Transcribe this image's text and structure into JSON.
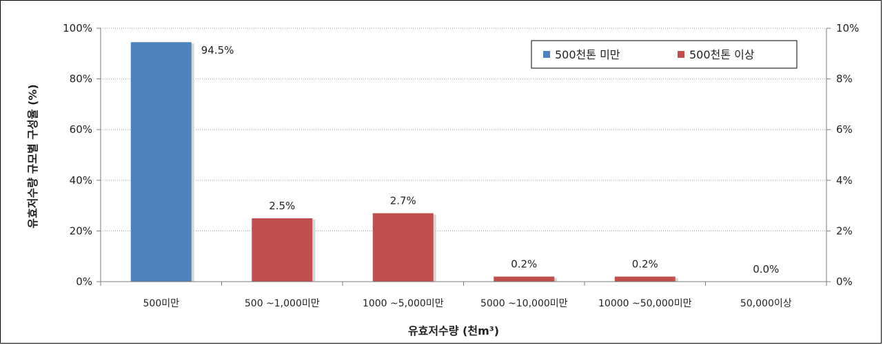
{
  "chart_data": {
    "type": "bar",
    "categories": [
      "500미만",
      "500 ~1,000미만",
      "1000 ~5,000미만",
      "5000 ~10,000미만",
      "10000 ~50,000미만",
      "50,000이상"
    ],
    "series": [
      {
        "name": "500천톤 미만",
        "color": "#4F81BD",
        "axis": "left",
        "values": [
          94.5,
          null,
          null,
          null,
          null,
          null
        ]
      },
      {
        "name": "500천톤 이상",
        "color": "#C0504D",
        "axis": "right",
        "values": [
          null,
          2.5,
          2.7,
          0.2,
          0.2,
          0.0
        ]
      }
    ],
    "data_labels": [
      "94.5%",
      "2.5%",
      "2.7%",
      "0.2%",
      "0.2%",
      "0.0%"
    ],
    "xlabel": "유효저수량 (천m³)",
    "ylabel": "유효저수량 규모별 구성율 (%)",
    "ylim_left": [
      0,
      100
    ],
    "ylim_right": [
      0,
      10
    ],
    "yticks_left": [
      "0%",
      "20%",
      "40%",
      "60%",
      "80%",
      "100%"
    ],
    "yticks_right": [
      "0%",
      "2%",
      "4%",
      "6%",
      "8%",
      "10%"
    ],
    "grid": true,
    "legend_position": "top-right"
  }
}
